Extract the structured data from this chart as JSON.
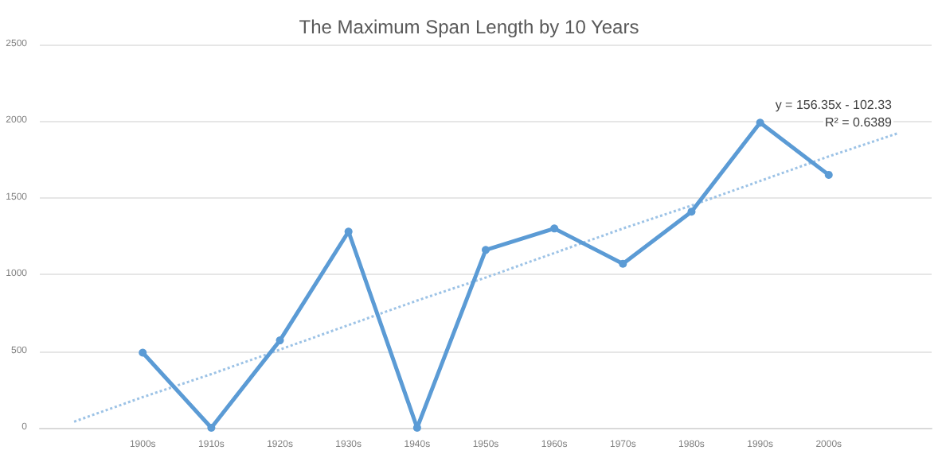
{
  "chart_data": {
    "type": "line",
    "title": "The Maximum Span Length by 10 Years",
    "categories": [
      null,
      "1900s",
      "1910s",
      "1920s",
      "1930s",
      "1940s",
      "1950s",
      "1960s",
      "1970s",
      "1980s",
      "1990s",
      "2000s",
      null
    ],
    "series": [
      {
        "color": "#5b9bd5",
        "values": [
          null,
          490,
          0,
          570,
          1280,
          0,
          1160,
          1300,
          1070,
          1410,
          1990,
          1650,
          null
        ],
        "marker": "circle",
        "line_style": "solid"
      },
      {
        "color": "#9dc3e6",
        "values": [
          40,
          200,
          350,
          510,
          670,
          830,
          980,
          1140,
          1300,
          1450,
          1610,
          1770,
          1920
        ],
        "marker": "none",
        "line_style": "dotted"
      }
    ],
    "ylim": [
      0,
      2500
    ],
    "yticks": [
      0,
      500,
      1000,
      1500,
      2000,
      2500
    ],
    "grid": "y",
    "annotations": [
      "y = 156.35x - 102.33",
      "R² = 0.6389"
    ]
  }
}
